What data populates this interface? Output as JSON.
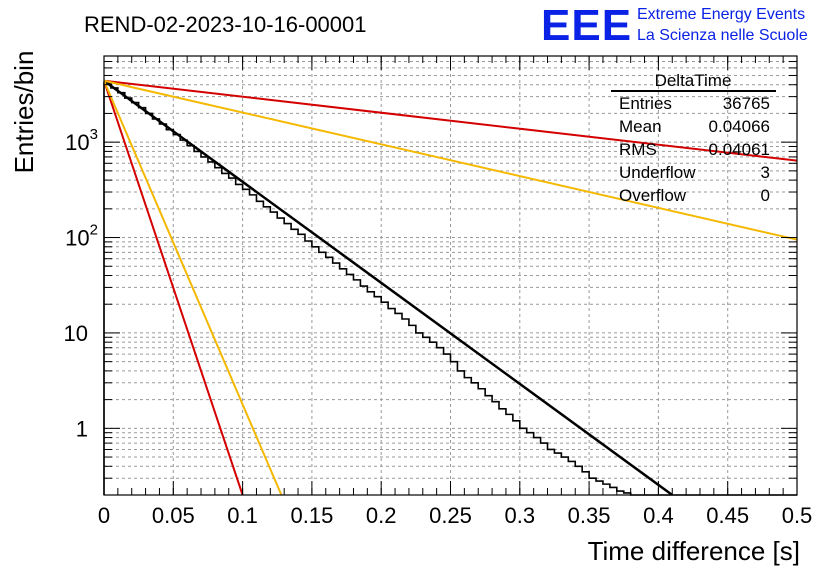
{
  "chart_data": {
    "type": "histogram",
    "title": "REND-02-2023-10-16-00001",
    "xlabel": "Time difference [s]",
    "ylabel": "Entries/bin",
    "xlim": [
      0,
      0.5
    ],
    "ylim": [
      0.2,
      8000
    ],
    "yscale": "log",
    "grid": true,
    "x_ticks": [
      {
        "value": 0,
        "label": "0"
      },
      {
        "value": 0.05,
        "label": "0.05"
      },
      {
        "value": 0.1,
        "label": "0.1"
      },
      {
        "value": 0.15,
        "label": "0.15"
      },
      {
        "value": 0.2,
        "label": "0.2"
      },
      {
        "value": 0.25,
        "label": "0.25"
      },
      {
        "value": 0.3,
        "label": "0.3"
      },
      {
        "value": 0.35,
        "label": "0.35"
      },
      {
        "value": 0.4,
        "label": "0.4"
      },
      {
        "value": 0.45,
        "label": "0.45"
      },
      {
        "value": 0.5,
        "label": "0.5"
      }
    ],
    "y_ticks": [
      {
        "value": 1,
        "base": "1",
        "exp": ""
      },
      {
        "value": 10,
        "base": "10",
        "exp": ""
      },
      {
        "value": 100,
        "base": "10",
        "exp": "2"
      },
      {
        "value": 1000,
        "base": "10",
        "exp": "3"
      }
    ],
    "bin_width": 0.005,
    "histogram": [
      4200,
      3700,
      3300,
      2900,
      2600,
      2300,
      2000,
      1750,
      1550,
      1350,
      1200,
      1050,
      920,
      800,
      700,
      620,
      540,
      470,
      420,
      360,
      320,
      280,
      240,
      210,
      185,
      160,
      140,
      122,
      108,
      92,
      80,
      70,
      62,
      54,
      47,
      41,
      36,
      31,
      27,
      24,
      21,
      18,
      16,
      14,
      12,
      10,
      9,
      8,
      7,
      6,
      5,
      4,
      3.4,
      3.0,
      2.6,
      2.2,
      1.9,
      1.6,
      1.4,
      1.2,
      1.0,
      0.9,
      0.8,
      0.7,
      0.6,
      0.55,
      0.5,
      0.45,
      0.4,
      0.35,
      0.3,
      0.28,
      0.26,
      0.24,
      0.22,
      0.21,
      0.2,
      0.2,
      0.2,
      0.2,
      0.2,
      0.2,
      0.2,
      0.2,
      0.2,
      0.2,
      0.2,
      0.2,
      0.2,
      0.2,
      0.2,
      0.2,
      0.2,
      0.2,
      0.2,
      0.2,
      0.2,
      0.2,
      0.2,
      0.2
    ],
    "fits": [
      {
        "color": "#000000",
        "x": [
          0,
          0.41
        ],
        "y": [
          4400,
          0.2
        ],
        "width": 2.5
      },
      {
        "color": "#d40000",
        "x": [
          0,
          0.5
        ],
        "y": [
          4400,
          640
        ],
        "width": 2
      },
      {
        "color": "#f5b800",
        "x": [
          0,
          0.5
        ],
        "y": [
          4400,
          95
        ],
        "width": 2
      },
      {
        "color": "#d40000",
        "x": [
          0,
          0.1
        ],
        "y": [
          4400,
          0.2
        ],
        "width": 2
      },
      {
        "color": "#f5b800",
        "x": [
          0,
          0.128
        ],
        "y": [
          4400,
          0.2
        ],
        "width": 2
      }
    ],
    "stats": {
      "name": "DeltaTime",
      "rows": [
        {
          "label": "Entries",
          "value": "36765"
        },
        {
          "label": "Mean",
          "value": "0.04066"
        },
        {
          "label": "RMS",
          "value": "0.04061"
        },
        {
          "label": "Underflow",
          "value": "3"
        },
        {
          "label": "Overflow",
          "value": "0"
        }
      ]
    }
  },
  "logo": {
    "mark": "EEE",
    "line1": "Extreme Energy Events",
    "line2": "La Scienza nelle Scuole"
  }
}
